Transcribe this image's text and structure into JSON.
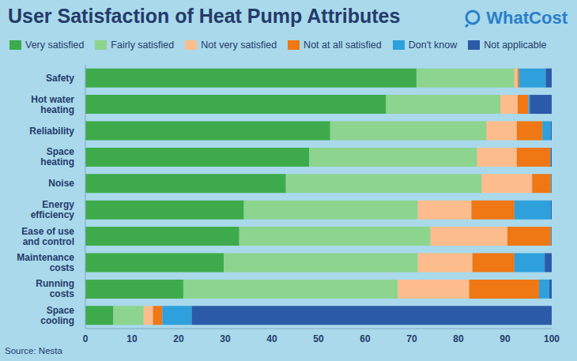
{
  "chart_data": {
    "type": "bar",
    "title": "User Satisfaction of Heat Pump Attributes",
    "source": "Source: Nesta",
    "logo": "WhatCost",
    "orientation": "horizontal",
    "stacked": true,
    "grid": false,
    "legend": "top",
    "categories": [
      "Safety",
      "Hot water heating",
      "Reliability",
      "Space heating",
      "Noise",
      "Energy efficiency",
      "Ease of use and control",
      "Maintenance costs",
      "Running costs",
      "Space cooling"
    ],
    "series": [
      {
        "name": "Very satisfied",
        "color": "#3dab4b",
        "values": [
          71,
          64.5,
          52.5,
          48,
          43,
          34,
          33,
          29.7,
          21,
          6
        ]
      },
      {
        "name": "Fairly satisfied",
        "color": "#8dd48f",
        "values": [
          21,
          24.5,
          33.5,
          36,
          42,
          37.3,
          41,
          41.6,
          46,
          6.5
        ]
      },
      {
        "name": "Not very satisfied",
        "color": "#fdbc8c",
        "values": [
          0.7,
          3.7,
          6.5,
          8.5,
          10.8,
          11.5,
          16.5,
          11.7,
          15.3,
          2
        ]
      },
      {
        "name": "Not at all satisfied",
        "color": "#ef7714",
        "values": [
          0.3,
          2.3,
          5.5,
          7.2,
          4,
          9.2,
          9.3,
          9,
          15,
          2
        ]
      },
      {
        "name": "Don't know",
        "color": "#2ea0dc",
        "values": [
          5.7,
          0.3,
          1.8,
          0.1,
          0.1,
          7.8,
          0.1,
          6.5,
          2.2,
          6.3
        ]
      },
      {
        "name": "Not applicable",
        "color": "#2b5ba8",
        "values": [
          1.3,
          4.7,
          0.2,
          0.2,
          0.1,
          0.2,
          0.1,
          1.5,
          0.5,
          77.2
        ]
      }
    ],
    "xlim": [
      0,
      100
    ],
    "xticks": [
      0,
      10,
      20,
      30,
      40,
      50,
      60,
      70,
      80,
      90,
      100
    ]
  }
}
